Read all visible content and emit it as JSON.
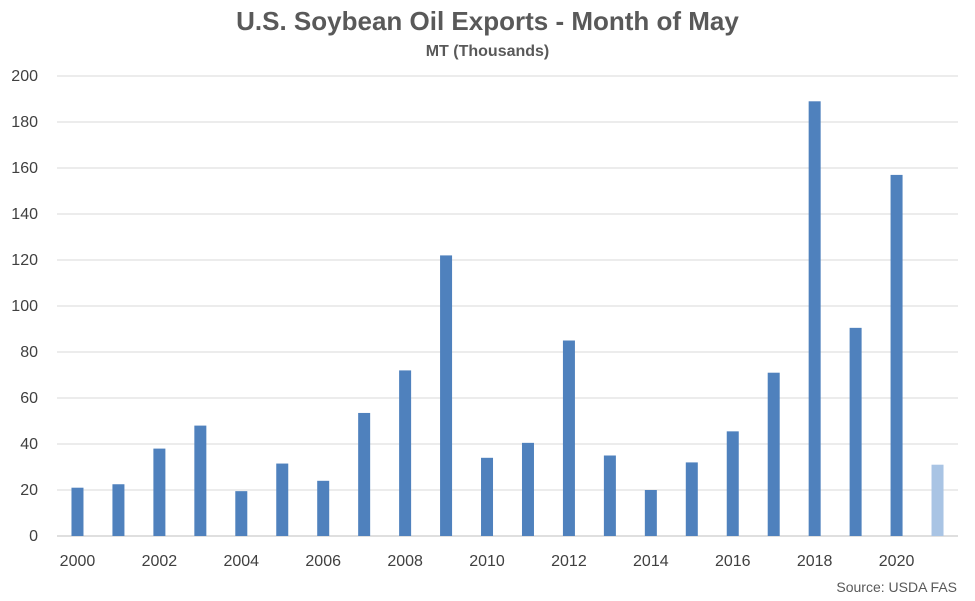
{
  "chart_data": {
    "type": "bar",
    "title": "U.S. Soybean Oil Exports - Month of May",
    "subtitle": "MT (Thousands)",
    "source": "Source: USDA FAS",
    "xlabel": "",
    "ylabel": "",
    "ylim": [
      0,
      200
    ],
    "yticks": [
      0,
      20,
      40,
      60,
      80,
      100,
      120,
      140,
      160,
      180,
      200
    ],
    "grid": true,
    "legend": "none",
    "categories": [
      "2000",
      "2001",
      "2002",
      "2003",
      "2004",
      "2005",
      "2006",
      "2007",
      "2008",
      "2009",
      "2010",
      "2011",
      "2012",
      "2013",
      "2014",
      "2015",
      "2016",
      "2017",
      "2018",
      "2019",
      "2020",
      "2021"
    ],
    "xtick_labels": [
      "2000",
      "2002",
      "2004",
      "2006",
      "2008",
      "2010",
      "2012",
      "2014",
      "2016",
      "2018",
      "2020"
    ],
    "values": [
      21,
      22.5,
      38,
      48,
      19.5,
      31.5,
      24,
      53.5,
      72,
      122,
      34,
      40.5,
      85,
      35,
      20,
      32,
      45.5,
      71,
      189,
      90.5,
      157,
      31
    ],
    "colors": {
      "bar": "#4f81bd",
      "bar_latest": "#a9c4e4",
      "grid": "#d9d9d9",
      "text": "#595959"
    }
  }
}
